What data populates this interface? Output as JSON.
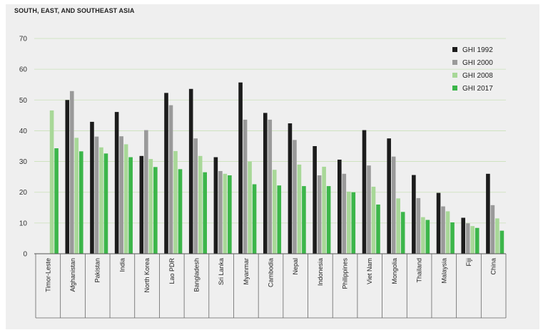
{
  "chart_data": {
    "type": "bar",
    "title": "SOUTH, EAST, AND SOUTHEAST ASIA",
    "xlabel": "",
    "ylabel": "",
    "ylim": [
      0,
      70
    ],
    "yticks": [
      0,
      10,
      20,
      30,
      40,
      50,
      60,
      70
    ],
    "grid": true,
    "legend_position": "top-right",
    "categories": [
      "Timor-Leste",
      "Afghanistan",
      "Pakistan",
      "India",
      "North Korea",
      "Lao PDR",
      "Bangladesh",
      "Sri Lanka",
      "Myanmar",
      "Cambodia",
      "Nepal",
      "Indonesia",
      "Philippines",
      "Viet Nam",
      "Mongolia",
      "Thailand",
      "Malaysia",
      "Fiji",
      "China"
    ],
    "series": [
      {
        "name": "GHI 1992",
        "color": "#1c1c1c",
        "values": [
          null,
          50.0,
          42.9,
          46.1,
          31.8,
          52.3,
          53.6,
          31.4,
          55.7,
          45.8,
          42.4,
          35.0,
          30.6,
          40.2,
          37.5,
          25.6,
          19.8,
          11.7,
          26.0
        ]
      },
      {
        "name": "GHI 2000",
        "color": "#9a9a9a",
        "values": [
          null,
          52.9,
          38.1,
          38.2,
          40.2,
          48.3,
          37.5,
          26.9,
          43.6,
          43.6,
          37.0,
          25.5,
          26.0,
          28.7,
          31.6,
          18.1,
          15.4,
          9.9,
          15.8
        ]
      },
      {
        "name": "GHI 2008",
        "color": "#a8d898",
        "values": [
          46.6,
          37.7,
          34.6,
          35.6,
          30.8,
          33.4,
          31.8,
          26.0,
          30.0,
          27.3,
          29.0,
          28.3,
          20.2,
          21.8,
          18.0,
          11.9,
          13.8,
          9.0,
          11.5
        ]
      },
      {
        "name": "GHI 2017",
        "color": "#3cb64a",
        "values": [
          34.3,
          33.3,
          32.6,
          31.4,
          28.2,
          27.5,
          26.5,
          25.5,
          22.6,
          22.2,
          22.0,
          22.0,
          20.0,
          16.0,
          13.6,
          11.0,
          10.2,
          8.4,
          7.5
        ]
      }
    ]
  }
}
